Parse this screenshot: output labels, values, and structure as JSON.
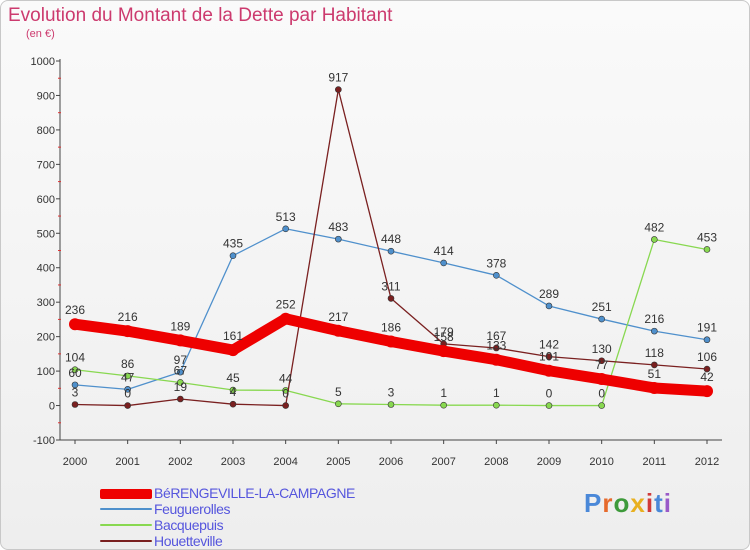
{
  "header": {
    "title": "Evolution du Montant de la Dette par Habitant",
    "subtitle": "(en €)"
  },
  "logo": {
    "text": "Proxiti",
    "letter_colors": [
      "#4a88d8",
      "#e66a2c",
      "#3d9a3a",
      "#e8b020",
      "#d03a3a",
      "#4a88d8",
      "#9a5ac8"
    ]
  },
  "chart_data": {
    "type": "line",
    "title": "Evolution du Montant de la Dette par Habitant",
    "subtitle": "(en €)",
    "x": [
      "2000",
      "2001",
      "2002",
      "2003",
      "2004",
      "2005",
      "2006",
      "2007",
      "2008",
      "2009",
      "2010",
      "2011",
      "2012"
    ],
    "ylim": [
      -100,
      1000
    ],
    "yticks": [
      -100,
      0,
      100,
      200,
      300,
      400,
      500,
      600,
      700,
      800,
      900,
      1000
    ],
    "grid": false,
    "legend_position": "bottom-left",
    "series": [
      {
        "name": "BéRENGEVILLE-LA-CAMPAGNE",
        "color": "#ee0000",
        "emphasis": true,
        "values": [
          236,
          216,
          189,
          161,
          252,
          217,
          186,
          158,
          133,
          101,
          77,
          51,
          42
        ]
      },
      {
        "name": "Feuguerolles",
        "color": "#4f90cc",
        "emphasis": false,
        "values": [
          60,
          47,
          97,
          435,
          513,
          483,
          448,
          414,
          378,
          289,
          251,
          216,
          191
        ]
      },
      {
        "name": "Bacquepuis",
        "color": "#88d850",
        "emphasis": false,
        "values": [
          104,
          86,
          67,
          45,
          44,
          5,
          3,
          1,
          1,
          0,
          0,
          482,
          453
        ]
      },
      {
        "name": "Houetteville",
        "color": "#7a2020",
        "emphasis": false,
        "values": [
          3,
          0,
          19,
          4,
          0,
          917,
          311,
          179,
          167,
          142,
          130,
          118,
          106
        ]
      }
    ]
  }
}
